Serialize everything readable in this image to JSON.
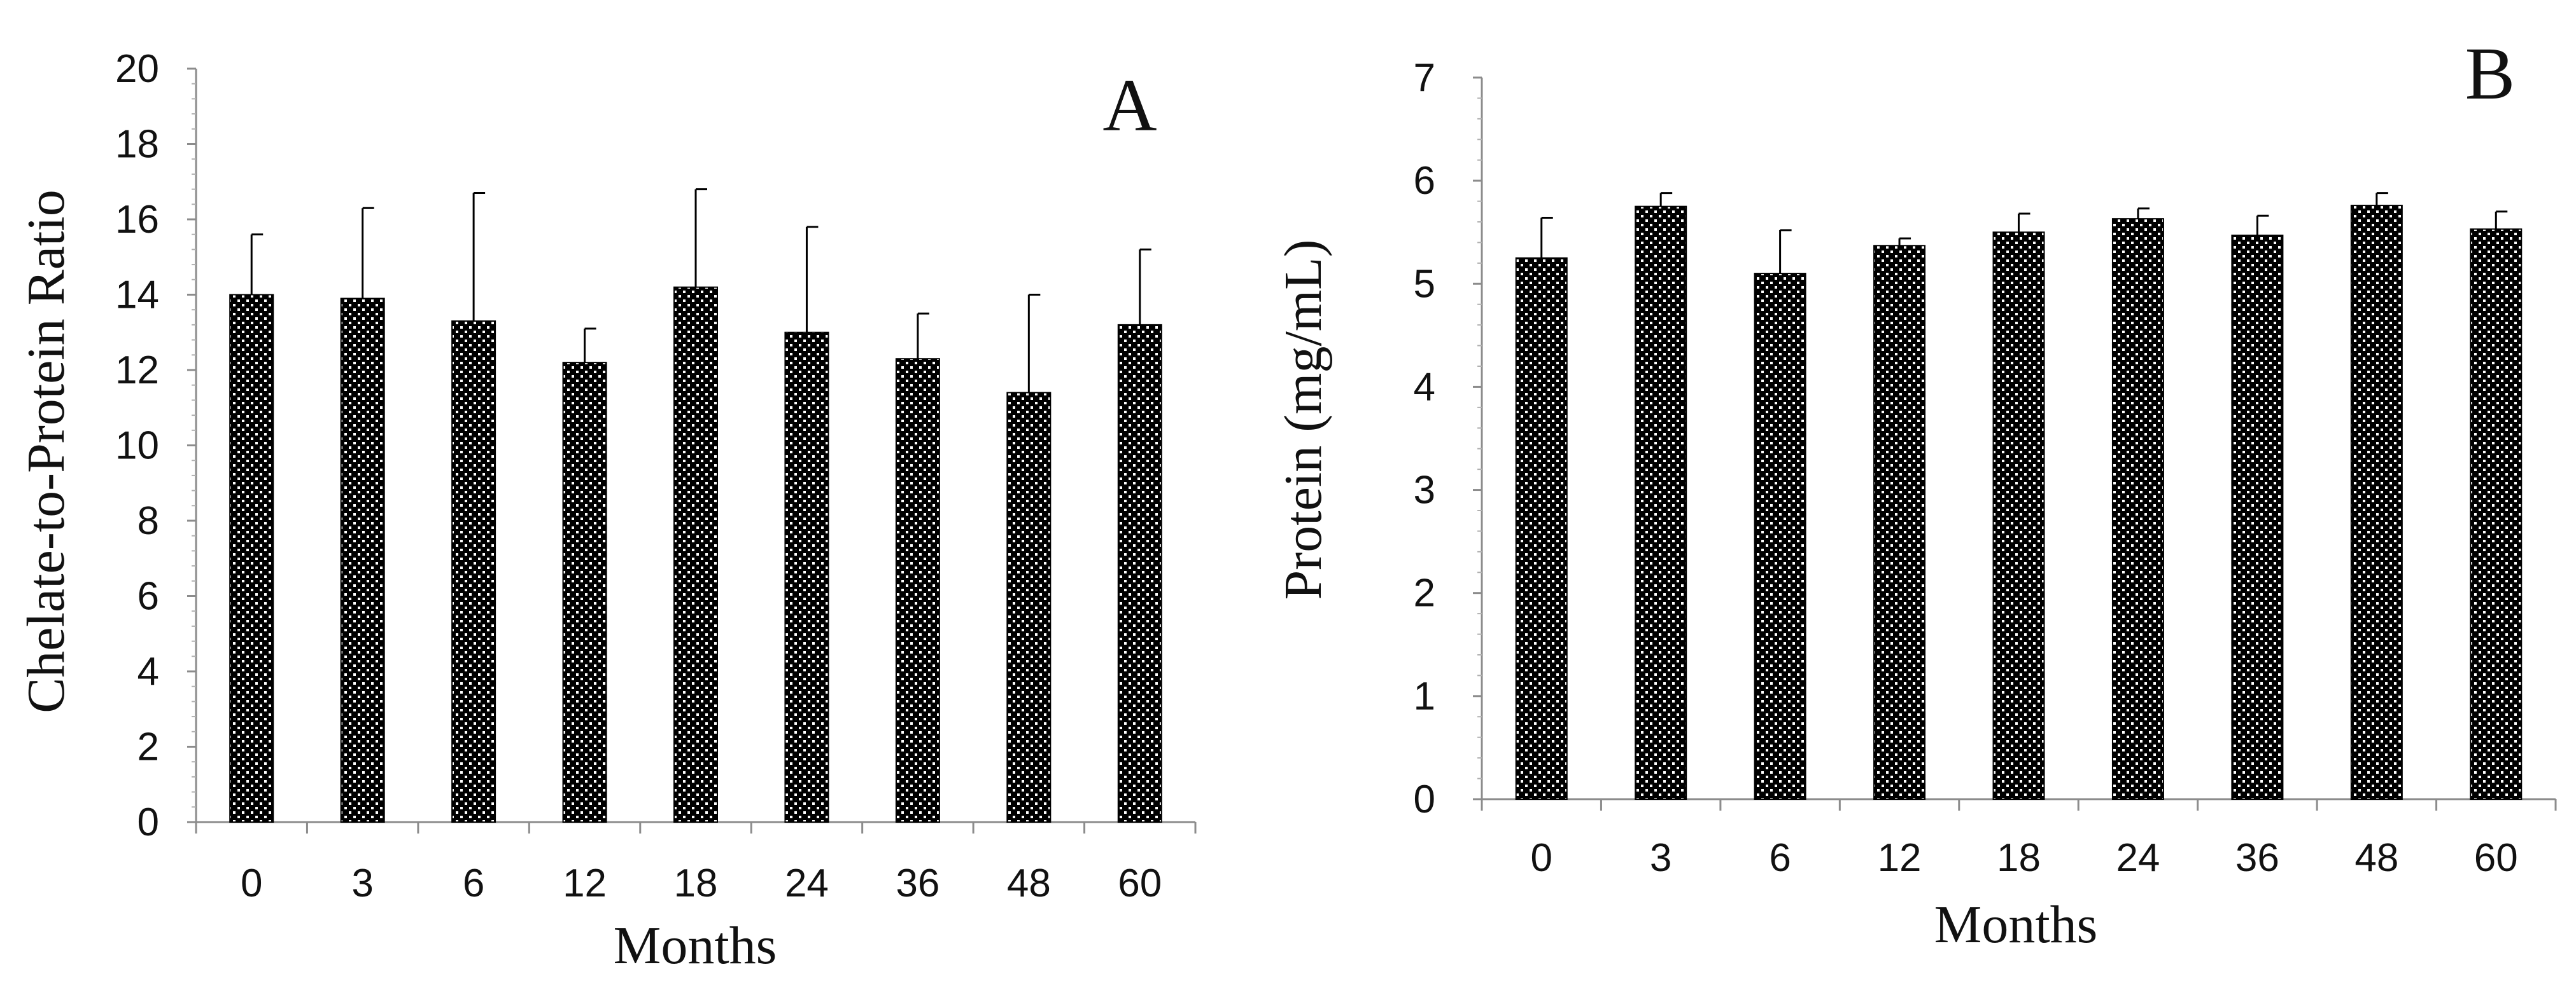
{
  "chart_data": [
    {
      "type": "bar",
      "panel_label": "A",
      "categories": [
        "0",
        "3",
        "6",
        "12",
        "18",
        "24",
        "36",
        "48",
        "60"
      ],
      "values": [
        14.0,
        13.9,
        13.3,
        12.2,
        14.2,
        13.0,
        12.3,
        11.4,
        13.2
      ],
      "error_upper": [
        15.6,
        16.3,
        16.7,
        13.1,
        16.8,
        15.8,
        13.5,
        14.0,
        15.2
      ],
      "xlabel": "Months",
      "ylabel": "Chelate-to-Protein Ratio",
      "ylim": [
        0,
        20
      ],
      "yticks": [
        0,
        2,
        4,
        6,
        8,
        10,
        12,
        14,
        16,
        18,
        20
      ],
      "grid": false,
      "bar_pattern": "black-white checker"
    },
    {
      "type": "bar",
      "panel_label": "B",
      "categories": [
        "0",
        "3",
        "6",
        "12",
        "18",
        "24",
        "36",
        "48",
        "60"
      ],
      "values": [
        5.25,
        5.75,
        5.1,
        5.37,
        5.5,
        5.63,
        5.47,
        5.76,
        5.53
      ],
      "error_upper": [
        5.64,
        5.88,
        5.52,
        5.44,
        5.68,
        5.73,
        5.66,
        5.88,
        5.7
      ],
      "xlabel": "Months",
      "ylabel": "Protein (mg/mL)",
      "ylim": [
        0,
        7
      ],
      "yticks": [
        0,
        1,
        2,
        3,
        4,
        5,
        6,
        7
      ],
      "grid": false,
      "bar_pattern": "black-white checker"
    }
  ]
}
